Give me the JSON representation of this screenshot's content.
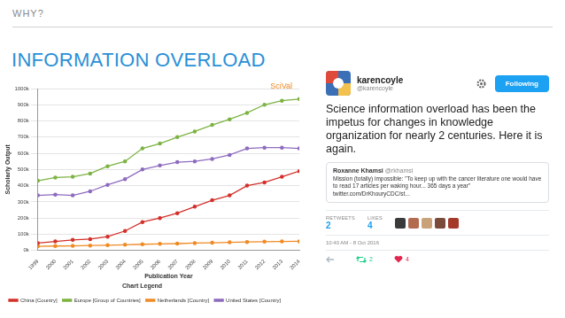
{
  "header": {
    "section": "WHY?",
    "title": "INFORMATION OVERLOAD"
  },
  "chart_data": {
    "type": "line",
    "annotations": [
      "SciVal"
    ],
    "x_label": "Publication Year",
    "y_label": "Scholarly Output",
    "legend_title": "Chart Legend",
    "legend": "bottom",
    "grid": true,
    "marker": "circle",
    "line_style": "solid",
    "categories": [
      "1999",
      "2000",
      "2001",
      "2002",
      "2003",
      "2004",
      "2005",
      "2006",
      "2007",
      "2008",
      "2009",
      "2010",
      "2011",
      "2012",
      "2013",
      "2014"
    ],
    "ylim": [
      0,
      1000
    ],
    "yticks": [
      {
        "value": 0,
        "label": "0k"
      },
      {
        "value": 100,
        "label": "100k"
      },
      {
        "value": 200,
        "label": "200k"
      },
      {
        "value": 300,
        "label": "300k"
      },
      {
        "value": 400,
        "label": "400k"
      },
      {
        "value": 500,
        "label": "500k"
      },
      {
        "value": 600,
        "label": "600k"
      },
      {
        "value": 700,
        "label": "700k"
      },
      {
        "value": 800,
        "label": "800k"
      },
      {
        "value": 900,
        "label": "900k"
      },
      {
        "value": 1000,
        "label": "1000k"
      }
    ],
    "series": [
      {
        "name": "China [Country]",
        "color": "#d3302a",
        "values": [
          45,
          55,
          65,
          70,
          85,
          120,
          175,
          200,
          230,
          270,
          310,
          340,
          400,
          420,
          455,
          490
        ]
      },
      {
        "name": "Europe [Group of Countries]",
        "color": "#7cb342",
        "values": [
          430,
          450,
          455,
          475,
          520,
          550,
          630,
          660,
          700,
          735,
          775,
          810,
          850,
          900,
          925,
          935
        ]
      },
      {
        "name": "Netherlands [Country]",
        "color": "#f08a24",
        "values": [
          25,
          27,
          28,
          30,
          32,
          35,
          38,
          40,
          42,
          45,
          47,
          50,
          52,
          54,
          55,
          56
        ]
      },
      {
        "name": "United States [Country]",
        "color": "#8e6bbf",
        "values": [
          340,
          345,
          340,
          365,
          405,
          440,
          500,
          525,
          545,
          550,
          565,
          590,
          630,
          635,
          635,
          630
        ]
      }
    ]
  },
  "tweet": {
    "name": "karencoyle",
    "handle": "@karencoyle",
    "button": "Following",
    "text": "Science information overload has been the impetus for changes in knowledge organization for nearly 2 centuries. Here it is again.",
    "quoted": {
      "name": "Roxanne Khamsi",
      "handle": "@rkhamsi",
      "text": "Mission (totally) impossible: \"To keep up with the cancer literature one would have to read 17 articles per waking hour... 365 days a year\" twitter.com/DrKhouryCDC/st..."
    },
    "stats": [
      {
        "label": "RETWEETS",
        "value": 2
      },
      {
        "label": "LIKES",
        "value": 4
      }
    ],
    "timestamp": "10:40 AM - 8 Oct 2016",
    "actions": {
      "retweets": 2,
      "likes": 4
    }
  }
}
